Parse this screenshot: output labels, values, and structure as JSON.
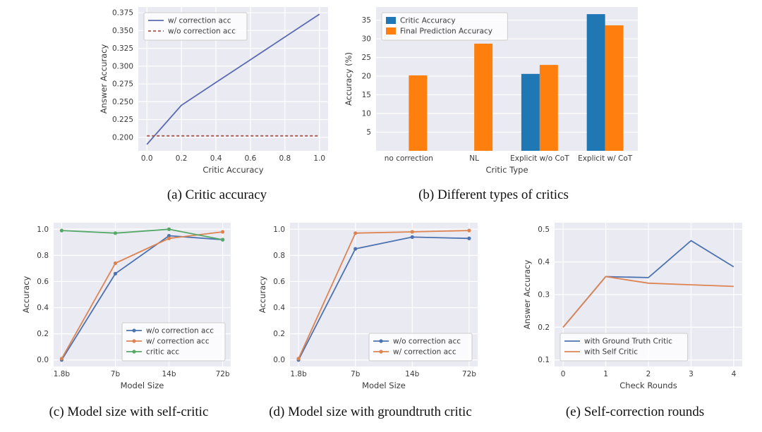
{
  "style": {
    "plot_bg": "#eaeaf2",
    "grid_color": "#ffffff",
    "text_color": "#3a3a3a",
    "legend_bg": "rgba(255,255,255,0.8)",
    "legend_border": "#cccccc"
  },
  "chart_data": [
    {
      "id": "a",
      "type": "line",
      "caption": "(a) Critic accuracy",
      "xlabel": "Critic Accuracy",
      "ylabel": "Answer Accuracy",
      "x": [
        0.0,
        0.2,
        0.4,
        0.6,
        0.8,
        1.0
      ],
      "xlim": [
        -0.05,
        1.05
      ],
      "ylim": [
        0.181,
        0.383
      ],
      "xticks": {
        "values": [
          0.0,
          0.2,
          0.4,
          0.6,
          0.8,
          1.0
        ],
        "labels": [
          "0.0",
          "0.2",
          "0.4",
          "0.6",
          "0.8",
          "1.0"
        ]
      },
      "yticks": {
        "values": [
          0.2,
          0.225,
          0.25,
          0.275,
          0.3,
          0.325,
          0.35,
          0.375
        ],
        "labels": [
          "0.200",
          "0.225",
          "0.250",
          "0.275",
          "0.300",
          "0.325",
          "0.350",
          "0.375"
        ]
      },
      "grid_vertical": true,
      "legend": {
        "position": "top-left"
      },
      "series": [
        {
          "name": "w/ correction acc",
          "color": "#5b6bb2",
          "dash": null,
          "marker": false,
          "values": [
            0.19,
            0.245,
            0.277,
            0.309,
            0.341,
            0.373
          ]
        },
        {
          "name": "w/o correction acc",
          "color": "#a5584e",
          "dash": "4 3",
          "marker": false,
          "values": [
            0.202,
            0.202,
            0.202,
            0.202,
            0.202,
            0.202
          ]
        }
      ]
    },
    {
      "id": "b",
      "type": "bar",
      "caption": "(b) Different types of critics",
      "xlabel": "Critic Type",
      "ylabel": "Accuracy (%)",
      "categories": [
        "no correction",
        "NL",
        "Explicit w/o CoT",
        "Explicit w/ CoT"
      ],
      "ylim": [
        0,
        38.5
      ],
      "yticks": {
        "values": [
          5,
          10,
          15,
          20,
          25,
          30,
          35
        ],
        "labels": [
          "5",
          "10",
          "15",
          "20",
          "25",
          "30",
          "35"
        ]
      },
      "grid_vertical": false,
      "legend": {
        "position": "top-left"
      },
      "series": [
        {
          "name": "Critic Accuracy",
          "color": "#1f77b4",
          "values": [
            null,
            null,
            20.6,
            36.6
          ]
        },
        {
          "name": "Final Prediction Accuracy",
          "color": "#ff7f0e",
          "values": [
            20.2,
            28.7,
            23.0,
            33.6
          ]
        }
      ]
    },
    {
      "id": "c",
      "type": "line",
      "caption": "(c) Model size with self-critic",
      "xlabel": "Model Size",
      "ylabel": "Accuracy",
      "x": [
        0,
        1,
        2,
        3
      ],
      "xlim": [
        -0.15,
        3.15
      ],
      "ylim": [
        -0.05,
        1.05
      ],
      "xticks": {
        "values": [
          0,
          1,
          2,
          3
        ],
        "labels": [
          "1.8b",
          "7b",
          "14b",
          "72b"
        ]
      },
      "yticks": {
        "values": [
          0.0,
          0.2,
          0.4,
          0.6,
          0.8,
          1.0
        ],
        "labels": [
          "0.0",
          "0.2",
          "0.4",
          "0.6",
          "0.8",
          "1.0"
        ]
      },
      "grid_vertical": true,
      "legend": {
        "position": "bottom-right"
      },
      "series": [
        {
          "name": "w/o correction acc",
          "color": "#4c72b0",
          "dash": null,
          "marker": true,
          "values": [
            0.0,
            0.66,
            0.95,
            0.92
          ]
        },
        {
          "name": "w/ correction acc",
          "color": "#dd8452",
          "dash": null,
          "marker": true,
          "values": [
            0.01,
            0.74,
            0.93,
            0.98
          ]
        },
        {
          "name": "critic acc",
          "color": "#55a868",
          "dash": null,
          "marker": true,
          "values": [
            0.99,
            0.97,
            1.0,
            0.92
          ]
        }
      ]
    },
    {
      "id": "d",
      "type": "line",
      "caption": "(d) Model size with groundtruth critic",
      "xlabel": "Model Size",
      "ylabel": "Accuracy",
      "x": [
        0,
        1,
        2,
        3
      ],
      "xlim": [
        -0.15,
        3.15
      ],
      "ylim": [
        -0.05,
        1.05
      ],
      "xticks": {
        "values": [
          0,
          1,
          2,
          3
        ],
        "labels": [
          "1.8b",
          "7b",
          "14b",
          "72b"
        ]
      },
      "yticks": {
        "values": [
          0.0,
          0.2,
          0.4,
          0.6,
          0.8,
          1.0
        ],
        "labels": [
          "0.0",
          "0.2",
          "0.4",
          "0.6",
          "0.8",
          "1.0"
        ]
      },
      "grid_vertical": true,
      "legend": {
        "position": "bottom-right"
      },
      "series": [
        {
          "name": "w/o correction acc",
          "color": "#4c72b0",
          "dash": null,
          "marker": true,
          "values": [
            0.0,
            0.85,
            0.94,
            0.93
          ]
        },
        {
          "name": "w/ correction acc",
          "color": "#dd8452",
          "dash": null,
          "marker": true,
          "values": [
            0.01,
            0.97,
            0.98,
            0.99
          ]
        }
      ]
    },
    {
      "id": "e",
      "type": "line",
      "caption": "(e) Self-correction rounds",
      "xlabel": "Check Rounds",
      "ylabel": "Answer Accuracy",
      "x": [
        0,
        1,
        2,
        3,
        4
      ],
      "xlim": [
        -0.2,
        4.2
      ],
      "ylim": [
        0.08,
        0.52
      ],
      "xticks": {
        "values": [
          0,
          1,
          2,
          3,
          4
        ],
        "labels": [
          "0",
          "1",
          "2",
          "3",
          "4"
        ]
      },
      "yticks": {
        "values": [
          0.1,
          0.2,
          0.3,
          0.4,
          0.5
        ],
        "labels": [
          "0.1",
          "0.2",
          "0.3",
          "0.4",
          "0.5"
        ]
      },
      "grid_vertical": true,
      "legend": {
        "position": "bottom-left"
      },
      "series": [
        {
          "name": "with Ground Truth Critic",
          "color": "#4c72b0",
          "dash": null,
          "marker": false,
          "values": [
            0.2,
            0.355,
            0.352,
            0.465,
            0.385
          ]
        },
        {
          "name": "with Self Critic",
          "color": "#dd8452",
          "dash": null,
          "marker": false,
          "values": [
            0.2,
            0.355,
            0.335,
            0.33,
            0.325
          ]
        }
      ]
    }
  ]
}
